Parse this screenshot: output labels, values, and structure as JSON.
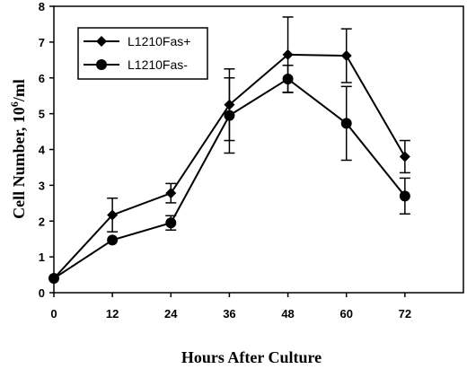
{
  "chart_data": {
    "type": "line",
    "xlabel": "Hours After Culture",
    "ylabel_main": "Cell Number, 10",
    "ylabel_exp": "6",
    "ylabel_unit": "/ml",
    "x": [
      0,
      12,
      24,
      36,
      48,
      60,
      72
    ],
    "x_ticks": [
      "0",
      "12",
      "24",
      "36",
      "48",
      "60",
      "72"
    ],
    "y_ticks": [
      "0",
      "1",
      "2",
      "3",
      "4",
      "5",
      "6",
      "7",
      "8"
    ],
    "xlim": [
      0,
      84
    ],
    "ylim": [
      0,
      8
    ],
    "legend_position": "top-left",
    "grid": false,
    "series": [
      {
        "name": "L1210Fas+",
        "marker": "diamond",
        "values": [
          0.4,
          2.17,
          2.78,
          5.25,
          6.65,
          6.62,
          3.8
        ],
        "error": [
          0,
          0.47,
          0.27,
          1.0,
          1.05,
          0.75,
          0.45
        ]
      },
      {
        "name": "L1210Fas-",
        "marker": "circle",
        "values": [
          0.4,
          1.47,
          1.95,
          4.95,
          5.97,
          4.73,
          2.7
        ],
        "error": [
          0,
          0.0,
          0.2,
          1.05,
          0.38,
          1.03,
          0.5
        ]
      }
    ]
  }
}
